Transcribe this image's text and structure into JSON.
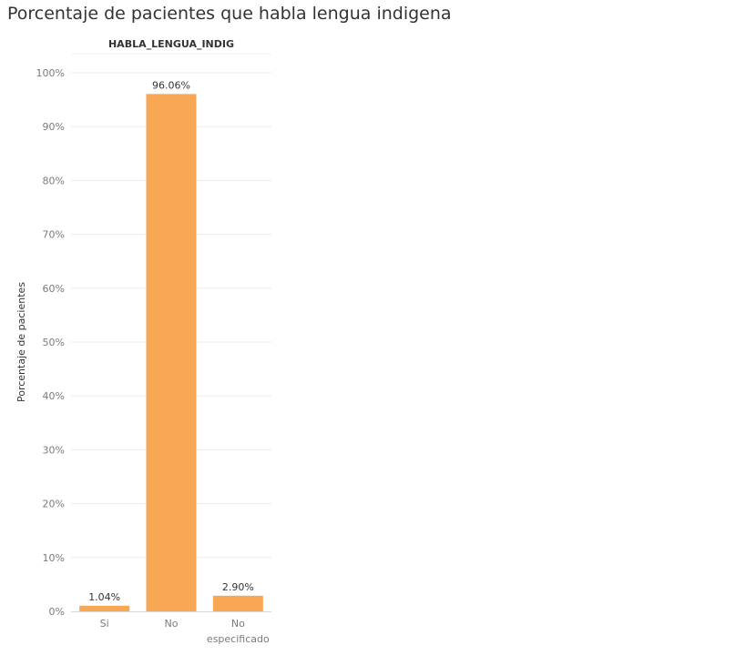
{
  "title": "Porcentaje de pacientes que habla lengua indigena",
  "colors": {
    "bar": "#f8a754",
    "grid": "#ebebeb",
    "axis_text": "#7a7a7a",
    "label_text": "#333333"
  },
  "chart_data": {
    "type": "bar",
    "header": "HABLA_LENGUA_INDIG",
    "categories": [
      "Si",
      "No",
      "No especificado"
    ],
    "category_lines": [
      [
        "Si"
      ],
      [
        "No"
      ],
      [
        "No",
        "especificado"
      ]
    ],
    "values": [
      1.04,
      96.06,
      2.9
    ],
    "value_labels": [
      "1.04%",
      "96.06%",
      "2.90%"
    ],
    "ylabel": "Porcentaje de pacientes",
    "ylim": [
      0,
      100
    ],
    "yticks": [
      0,
      10,
      20,
      30,
      40,
      50,
      60,
      70,
      80,
      90,
      100
    ],
    "ytick_labels": [
      "0%",
      "10%",
      "20%",
      "30%",
      "40%",
      "50%",
      "60%",
      "70%",
      "80%",
      "90%",
      "100%"
    ],
    "grid": true
  }
}
